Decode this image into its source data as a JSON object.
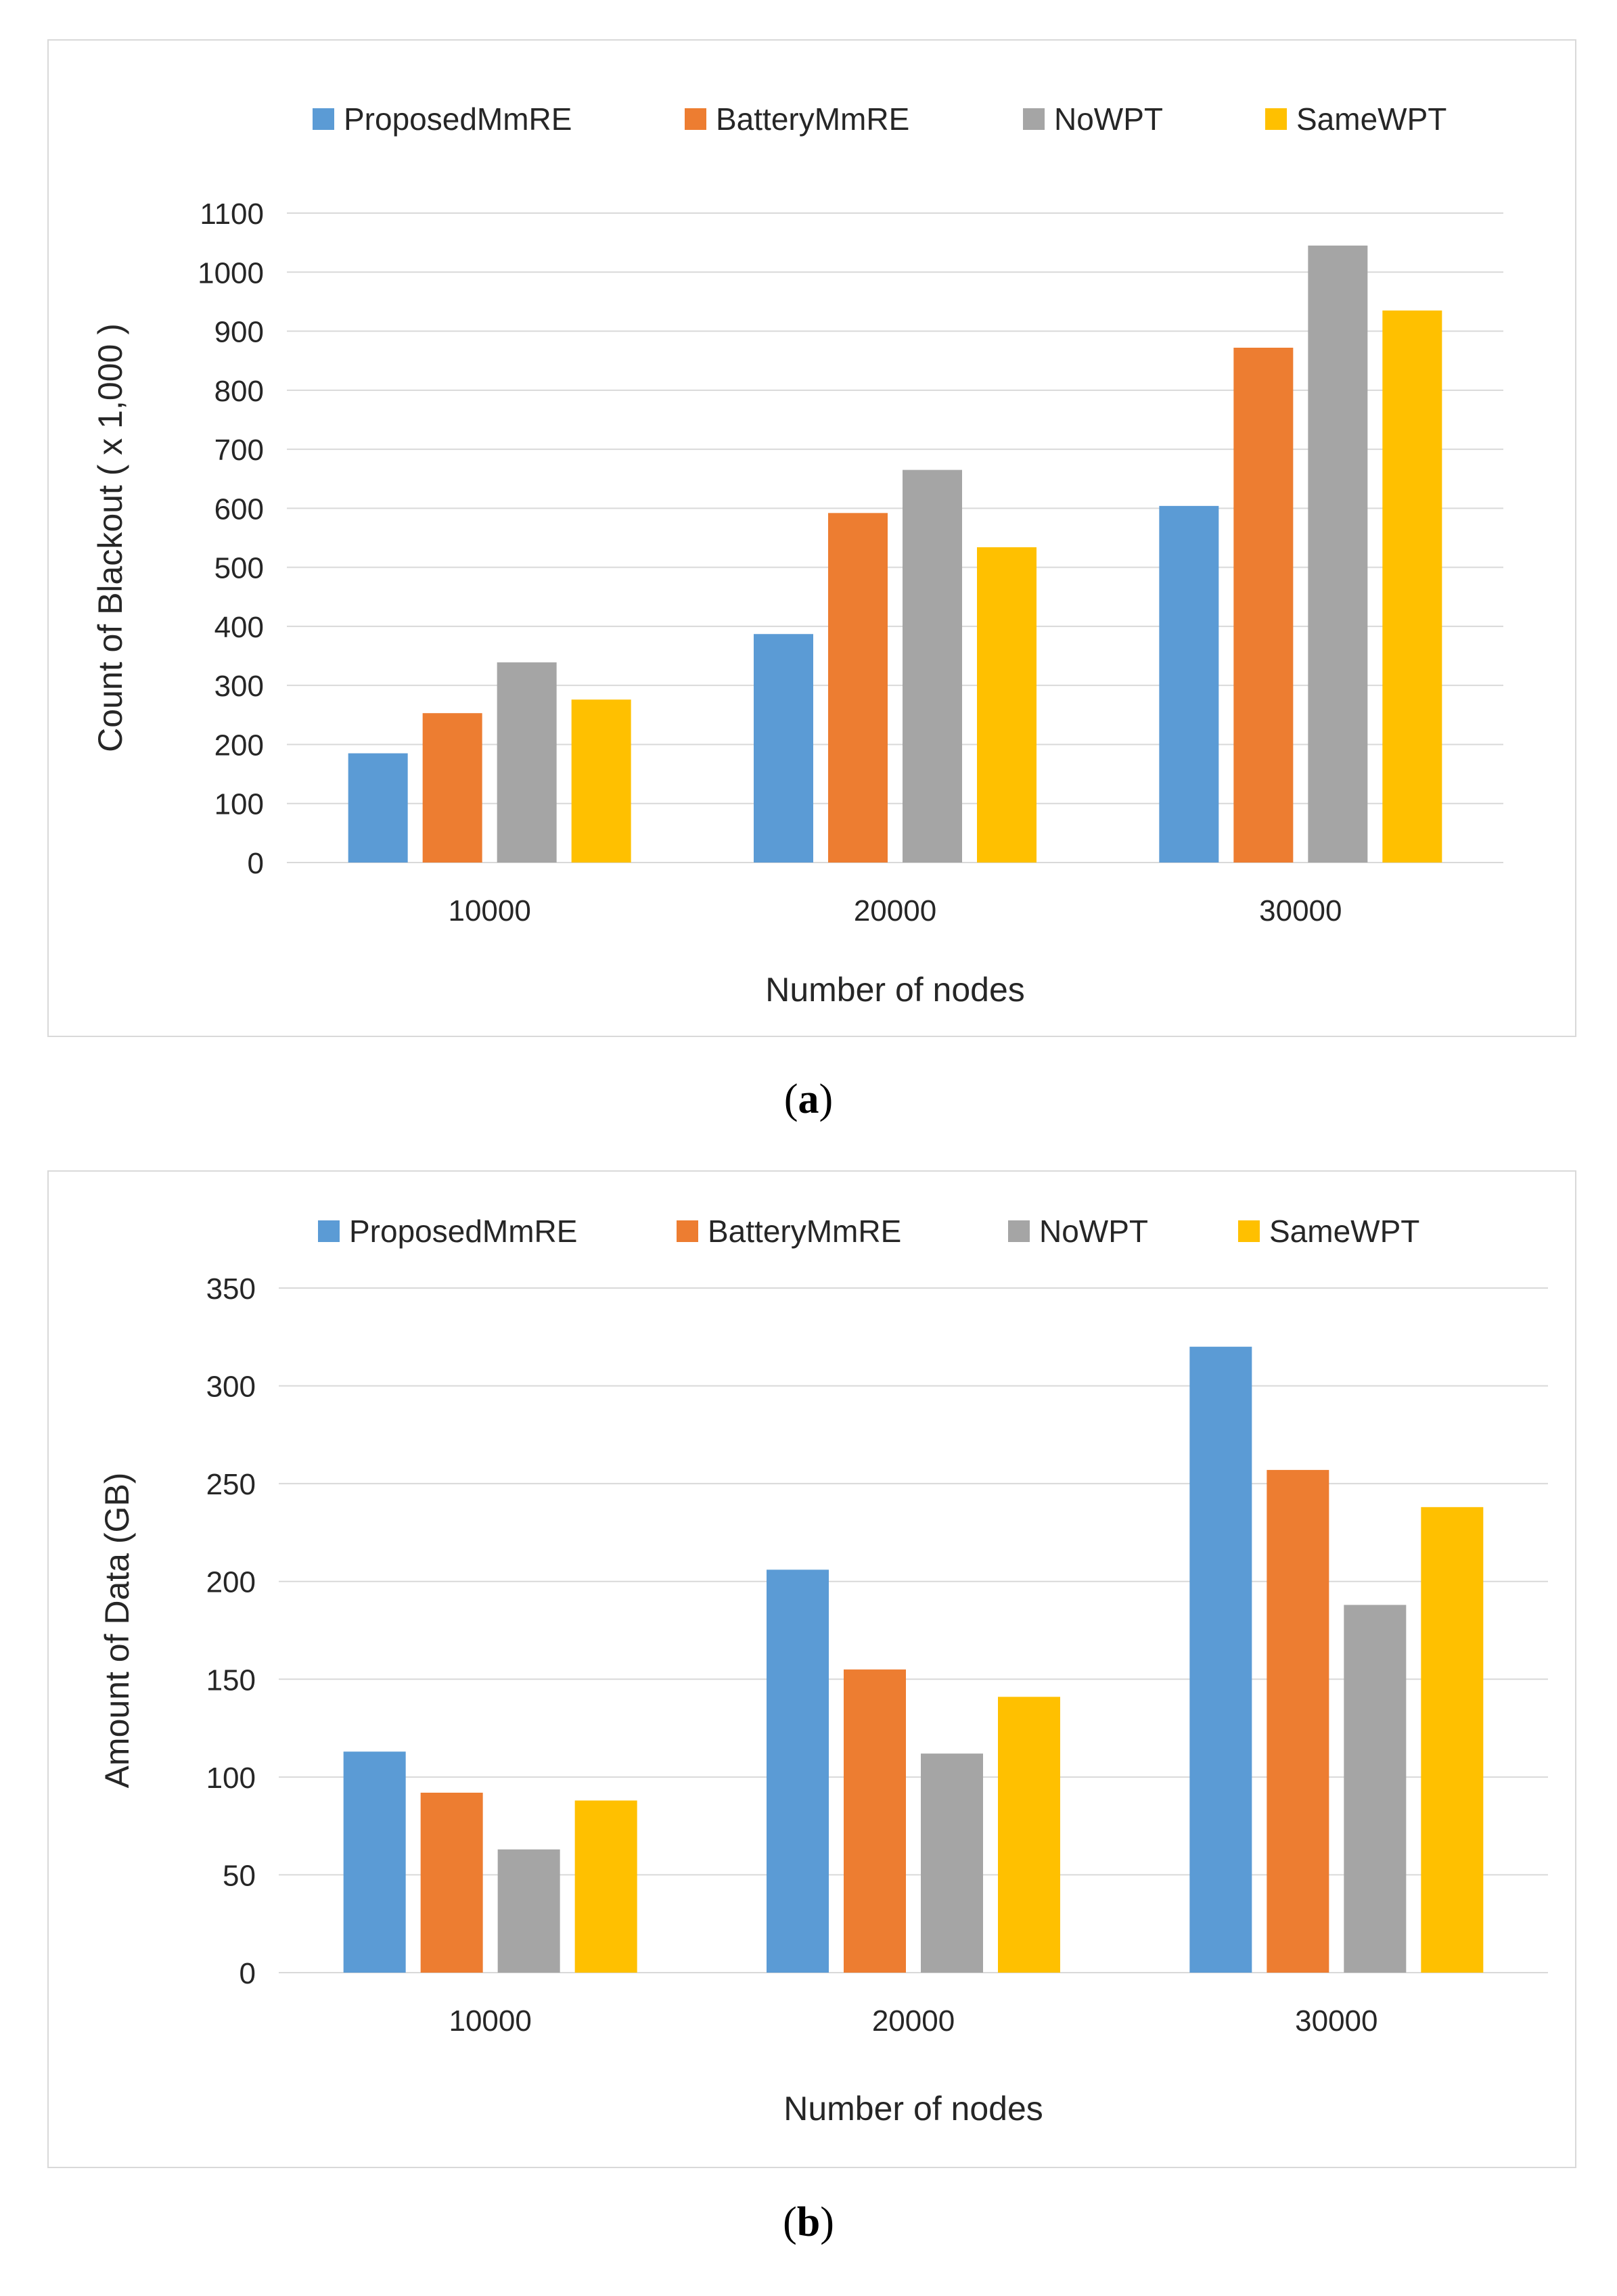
{
  "colors": {
    "series": [
      "#5b9bd5",
      "#ed7d31",
      "#a5a5a5",
      "#ffc000"
    ],
    "grid": "#d9d9d9",
    "text": "#262626"
  },
  "panel_a": {
    "label_open": "(",
    "label_letter": "a",
    "label_close": ")"
  },
  "panel_b": {
    "label_open": "(",
    "label_letter": "b",
    "label_close": ")"
  },
  "chart_data": [
    {
      "type": "bar",
      "xlabel": "Number of nodes",
      "ylabel": "Count of Blackout  ( x 1,000 )",
      "categories": [
        "10000",
        "20000",
        "30000"
      ],
      "ylim": [
        0,
        1100
      ],
      "yticks": [
        0,
        100,
        200,
        300,
        400,
        500,
        600,
        700,
        800,
        900,
        1000,
        1100
      ],
      "grid": true,
      "legend": "top",
      "series": [
        {
          "name": "ProposedMmRE",
          "values": [
            185,
            387,
            604
          ]
        },
        {
          "name": "BatteryMmRE",
          "values": [
            253,
            592,
            872
          ]
        },
        {
          "name": "NoWPT",
          "values": [
            339,
            665,
            1045
          ]
        },
        {
          "name": "SameWPT",
          "values": [
            276,
            534,
            935
          ]
        }
      ]
    },
    {
      "type": "bar",
      "xlabel": "Number of nodes",
      "ylabel": "Amount of Data  (GB)",
      "categories": [
        "10000",
        "20000",
        "30000"
      ],
      "ylim": [
        0,
        350
      ],
      "yticks": [
        0,
        50,
        100,
        150,
        200,
        250,
        300,
        350
      ],
      "grid": true,
      "legend": "top",
      "series": [
        {
          "name": "ProposedMmRE",
          "values": [
            113,
            206,
            320
          ]
        },
        {
          "name": "BatteryMmRE",
          "values": [
            92,
            155,
            257
          ]
        },
        {
          "name": "NoWPT",
          "values": [
            63,
            112,
            188
          ]
        },
        {
          "name": "SameWPT",
          "values": [
            88,
            141,
            238
          ]
        }
      ]
    }
  ]
}
